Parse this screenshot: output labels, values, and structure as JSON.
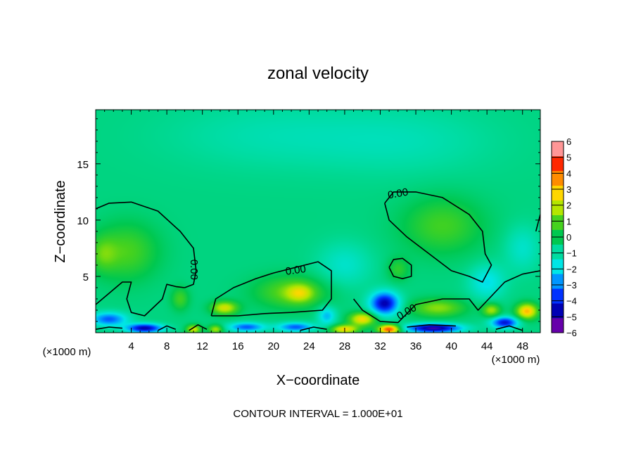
{
  "chart_data": {
    "type": "heatmap",
    "title": "zonal velocity",
    "xlabel": "X−coordinate",
    "ylabel": "Z−coordinate",
    "x_unit_left": "(×1000 m)",
    "x_unit_right": "(×1000 m)",
    "footer": "CONTOUR INTERVAL = 1.000E+01",
    "xlim": [
      0,
      50
    ],
    "ylim": [
      0,
      19.8
    ],
    "x_ticks": [
      4,
      8,
      12,
      16,
      20,
      24,
      28,
      32,
      36,
      40,
      44,
      48
    ],
    "x_tick_labels": [
      "4",
      "8",
      "12",
      "16",
      "20",
      "24",
      "28",
      "32",
      "36",
      "40",
      "44",
      "48"
    ],
    "y_ticks": [
      5,
      10,
      15
    ],
    "y_tick_labels": [
      "5",
      "10",
      "15"
    ],
    "contour_label": "0.00",
    "colorbar": {
      "levels": [
        -6,
        -5,
        -4,
        -3,
        -2,
        -1,
        0,
        1,
        2,
        3,
        4,
        5,
        6
      ],
      "labels": [
        "−6",
        "−5",
        "−4",
        "−3",
        "−2",
        "−1",
        "0",
        "1",
        "2",
        "3",
        "4",
        "5",
        "6"
      ],
      "colors": [
        "#6600aa",
        "#0000b4",
        "#0032ff",
        "#0096ff",
        "#00e6e6",
        "#00dca0",
        "#00c850",
        "#46d21e",
        "#b4e600",
        "#ffd700",
        "#ff8c00",
        "#ff2800",
        "#ff9696"
      ]
    },
    "field_base": -0.6,
    "blobs": [
      {
        "x": 3.5,
        "z": 7.2,
        "amp": 1.6,
        "sx": 3.5,
        "sz": 2.5
      },
      {
        "x": 0.8,
        "z": 7.0,
        "amp": 1.2,
        "sx": 1.5,
        "sz": 1.5
      },
      {
        "x": 22,
        "z": 3.6,
        "amp": 1.9,
        "sx": 4.0,
        "sz": 1.4
      },
      {
        "x": 14.5,
        "z": 2.2,
        "amp": 3.0,
        "sx": 1.5,
        "sz": 0.6
      },
      {
        "x": 23,
        "z": 3.5,
        "amp": 1.8,
        "sx": 1.5,
        "sz": 0.8
      },
      {
        "x": 39,
        "z": 9.5,
        "amp": 1.5,
        "sx": 4.5,
        "sz": 2.5
      },
      {
        "x": 34,
        "z": 5.6,
        "amp": 1.2,
        "sx": 1.2,
        "sz": 1.0
      },
      {
        "x": 38.5,
        "z": 2.2,
        "amp": 2.2,
        "sx": 3.0,
        "sz": 0.8
      },
      {
        "x": 48.5,
        "z": 1.9,
        "amp": 4.0,
        "sx": 1.2,
        "sz": 0.7
      },
      {
        "x": 30,
        "z": 1.2,
        "amp": 3.5,
        "sx": 1.5,
        "sz": 0.6
      },
      {
        "x": 33,
        "z": 0.3,
        "amp": 5.5,
        "sx": 1.2,
        "sz": 0.4
      },
      {
        "x": 28,
        "z": 0.3,
        "amp": 3.5,
        "sx": 1.5,
        "sz": 0.4
      },
      {
        "x": 11,
        "z": 0.3,
        "amp": 3.0,
        "sx": 0.8,
        "sz": 0.4
      },
      {
        "x": 13.5,
        "z": 0.3,
        "amp": 2.5,
        "sx": 0.8,
        "sz": 0.4
      },
      {
        "x": 44.5,
        "z": 2.0,
        "amp": 2.5,
        "sx": 1.0,
        "sz": 0.6
      },
      {
        "x": 9.5,
        "z": 3.0,
        "amp": 1.5,
        "sx": 1.0,
        "sz": 1.0
      },
      {
        "x": 32.5,
        "z": 2.6,
        "amp": -4.5,
        "sx": 1.6,
        "sz": 1.0
      },
      {
        "x": 1.5,
        "z": 1.2,
        "amp": -3.0,
        "sx": 2.0,
        "sz": 0.6
      },
      {
        "x": 5.5,
        "z": 0.4,
        "amp": -4.5,
        "sx": 2.0,
        "sz": 0.4
      },
      {
        "x": 38,
        "z": 0.4,
        "amp": -5.0,
        "sx": 3.0,
        "sz": 0.4
      },
      {
        "x": 46,
        "z": 0.9,
        "amp": -4.0,
        "sx": 1.5,
        "sz": 0.5
      },
      {
        "x": 17,
        "z": 0.5,
        "amp": -3.0,
        "sx": 2.0,
        "sz": 0.4
      },
      {
        "x": 22.5,
        "z": 0.5,
        "amp": -3.0,
        "sx": 2.0,
        "sz": 0.4
      },
      {
        "x": 26,
        "z": 1.5,
        "amp": -2.0,
        "sx": 1.0,
        "sz": 0.8
      },
      {
        "x": 44,
        "z": 4.5,
        "amp": -1.5,
        "sx": 2.0,
        "sz": 1.5
      },
      {
        "x": 48,
        "z": 7.5,
        "amp": -1.0,
        "sx": 2.0,
        "sz": 2.0
      },
      {
        "x": 28,
        "z": 6.0,
        "amp": -1.0,
        "sx": 3.0,
        "sz": 2.0
      },
      {
        "x": 20,
        "z": 17.5,
        "amp": -0.6,
        "sx": 12.0,
        "sz": 3.0
      },
      {
        "x": 35,
        "z": 17.0,
        "amp": -0.6,
        "sx": 10.0,
        "sz": 3.0
      }
    ],
    "contour_lines": [
      [
        [
          0,
          11.0
        ],
        [
          1.5,
          11.5
        ],
        [
          4,
          11.6
        ],
        [
          7,
          10.8
        ],
        [
          9.5,
          9.0
        ],
        [
          11,
          7.5
        ],
        [
          11.3,
          5.5
        ],
        [
          11,
          4.3
        ],
        [
          10,
          4.0
        ]
      ],
      [
        [
          10,
          4.0
        ],
        [
          9,
          4.1
        ],
        [
          8,
          4.3
        ],
        [
          7.5,
          3.0
        ],
        [
          5.5,
          1.5
        ],
        [
          4,
          1.8
        ],
        [
          3.5,
          3.0
        ],
        [
          4,
          4.5
        ],
        [
          3.0,
          4.5
        ],
        [
          1.5,
          3.5
        ],
        [
          0,
          2.5
        ]
      ],
      [
        [
          13,
          1.5
        ],
        [
          13.5,
          3.0
        ],
        [
          15.5,
          4.0
        ],
        [
          18,
          4.8
        ],
        [
          20,
          5.3
        ],
        [
          22,
          5.7
        ],
        [
          25,
          6.3
        ],
        [
          26.5,
          5.5
        ],
        [
          26.5,
          3.0
        ],
        [
          25.5,
          2.0
        ],
        [
          22,
          1.8
        ],
        [
          19,
          1.7
        ],
        [
          16,
          1.5
        ],
        [
          13,
          1.5
        ]
      ],
      [
        [
          32.5,
          11.5
        ],
        [
          33.5,
          12.5
        ],
        [
          36,
          12.5
        ],
        [
          39,
          12.0
        ],
        [
          42,
          10.5
        ],
        [
          43.5,
          9.0
        ],
        [
          43.8,
          7.0
        ],
        [
          44.5,
          6.0
        ],
        [
          43.5,
          4.5
        ],
        [
          42,
          5.0
        ],
        [
          40,
          5.5
        ],
        [
          37.5,
          7.0
        ],
        [
          35,
          8.5
        ],
        [
          33,
          10.0
        ],
        [
          32.5,
          11.5
        ]
      ],
      [
        [
          33,
          5.8
        ],
        [
          33.5,
          6.5
        ],
        [
          34.5,
          6.6
        ],
        [
          35.5,
          6.0
        ],
        [
          35.5,
          5.0
        ],
        [
          34.5,
          4.8
        ],
        [
          33.5,
          5.0
        ],
        [
          33,
          5.8
        ]
      ],
      [
        [
          29,
          3.0
        ],
        [
          30,
          2.0
        ],
        [
          32,
          1.0
        ],
        [
          34,
          0.9
        ],
        [
          36,
          2.5
        ],
        [
          39,
          3.0
        ],
        [
          42,
          3.0
        ],
        [
          43,
          2.0
        ],
        [
          44.2,
          3.0
        ],
        [
          46,
          4.5
        ],
        [
          48,
          5.2
        ],
        [
          50,
          5.5
        ]
      ],
      [
        [
          49.5,
          9.0
        ],
        [
          50,
          10.5
        ]
      ],
      [
        [
          0,
          0.3
        ],
        [
          1.5,
          0.5
        ],
        [
          3,
          0.4
        ]
      ],
      [
        [
          7,
          0.2
        ],
        [
          8,
          0.6
        ],
        [
          9,
          0.3
        ]
      ],
      [
        [
          10.5,
          0.2
        ],
        [
          11.5,
          0.7
        ],
        [
          12.5,
          0.3
        ]
      ],
      [
        [
          23,
          0.2
        ],
        [
          24.5,
          0.5
        ],
        [
          26,
          0.3
        ]
      ],
      [
        [
          35,
          0.5
        ],
        [
          37.5,
          0.7
        ],
        [
          40.5,
          0.6
        ]
      ],
      [
        [
          45,
          0.3
        ],
        [
          46.5,
          0.6
        ],
        [
          48,
          0.2
        ]
      ]
    ],
    "contour_labels": [
      {
        "x": 11.0,
        "z": 5.6,
        "rotate": 90
      },
      {
        "x": 22.5,
        "z": 5.5,
        "rotate": -8
      },
      {
        "x": 34.0,
        "z": 12.3,
        "rotate": -10
      },
      {
        "x": 35.0,
        "z": 1.8,
        "rotate": -30
      }
    ]
  }
}
